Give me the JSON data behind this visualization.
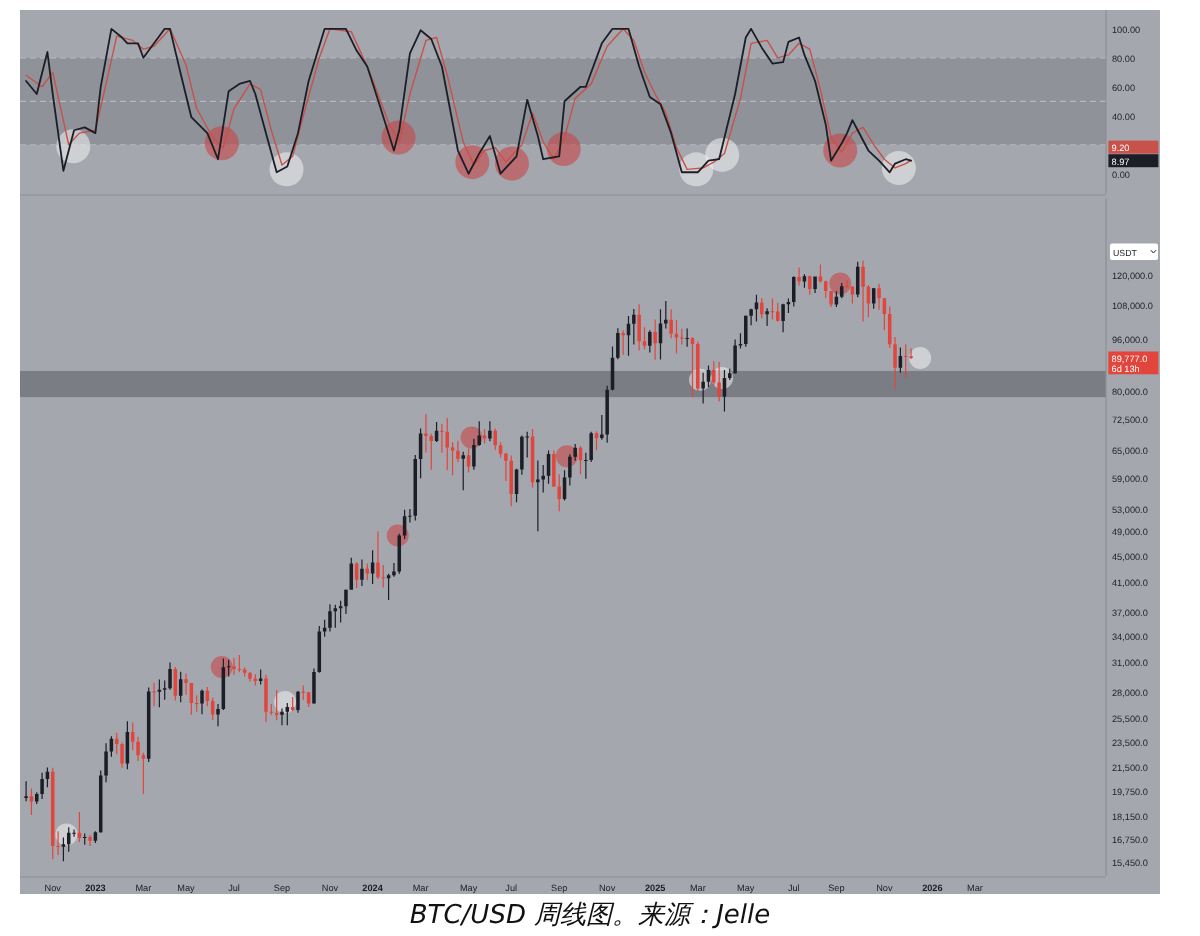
{
  "chart_data": [
    {
      "type": "line",
      "xlim": [
        "2022-09-25",
        "2026-08-21"
      ],
      "ylim": [
        -14,
        113
      ],
      "tick_labels": "y",
      "yticks": [
        {
          "value": 100,
          "label": "100.00"
        },
        {
          "value": 80,
          "label": "80.00"
        },
        {
          "value": 60,
          "label": "60.00"
        },
        {
          "value": 40,
          "label": "40.00"
        },
        {
          "value": 0,
          "label": "0.00"
        }
      ],
      "bands": [
        {
          "axis": "y",
          "from": 20,
          "to": 80,
          "color": "#8f9299"
        }
      ],
      "ref_lines": [
        {
          "axis": "y",
          "value": 80,
          "color": "#b4b7bd",
          "line_style": "dashed"
        },
        {
          "axis": "y",
          "value": 50,
          "color": "#b4b7bd",
          "line_style": "dashed"
        },
        {
          "axis": "y",
          "value": 20,
          "color": "#b4b7bd",
          "line_style": "dashed"
        }
      ],
      "annotations": [
        "9.20",
        "8.97"
      ],
      "series": [
        {
          "color": "#c8514a",
          "x": [
            "2022-10-03",
            "2022-10-24",
            "2022-11-07",
            "2022-11-28",
            "2022-12-12",
            "2023-01-02",
            "2023-01-16",
            "2023-01-30",
            "2023-02-20",
            "2023-03-06",
            "2023-03-20",
            "2023-04-10",
            "2023-05-01",
            "2023-05-15",
            "2023-06-05",
            "2023-06-19",
            "2023-07-03",
            "2023-07-24",
            "2023-08-07",
            "2023-08-21",
            "2023-09-04",
            "2023-09-18",
            "2023-10-02",
            "2023-10-23",
            "2023-11-06",
            "2023-12-04",
            "2023-12-18",
            "2024-01-01",
            "2024-01-22",
            "2024-02-05",
            "2024-02-19",
            "2024-03-11",
            "2024-03-25",
            "2024-04-08",
            "2024-04-29",
            "2024-05-13",
            "2024-05-27",
            "2024-06-10",
            "2024-06-24",
            "2024-07-15",
            "2024-07-29",
            "2024-08-12",
            "2024-08-26",
            "2024-09-09",
            "2024-09-23",
            "2024-10-14",
            "2024-11-04",
            "2024-11-25",
            "2024-12-09",
            "2024-12-23",
            "2025-01-06",
            "2025-01-20",
            "2025-02-03",
            "2025-02-17",
            "2025-03-10",
            "2025-03-24",
            "2025-04-07",
            "2025-04-28",
            "2025-05-12",
            "2025-06-02",
            "2025-06-16",
            "2025-06-30",
            "2025-07-14",
            "2025-07-28",
            "2025-08-11",
            "2025-08-25",
            "2025-09-08",
            "2025-09-22",
            "2025-10-06",
            "2025-10-20",
            "2025-11-03",
            "2025-11-17",
            "2025-12-01",
            "2025-12-08"
          ],
          "values": [
            68,
            60,
            70,
            20,
            28,
            30,
            62,
            95,
            92,
            86,
            88,
            100,
            75,
            45,
            25,
            18,
            45,
            62,
            58,
            30,
            6,
            12,
            40,
            80,
            100,
            98,
            82,
            65,
            35,
            22,
            55,
            92,
            94,
            68,
            22,
            6,
            16,
            18,
            8,
            20,
            42,
            22,
            10,
            25,
            52,
            62,
            88,
            100,
            92,
            70,
            55,
            42,
            18,
            3,
            4,
            8,
            14,
            52,
            90,
            92,
            80,
            82,
            90,
            86,
            58,
            25,
            15,
            28,
            32,
            20,
            10,
            4,
            7,
            9.2
          ]
        },
        {
          "color": "#1b1e26",
          "x": [
            "2022-10-03",
            "2022-10-17",
            "2022-10-31",
            "2022-11-07",
            "2022-11-21",
            "2022-12-05",
            "2022-12-19",
            "2023-01-02",
            "2023-01-09",
            "2023-01-23",
            "2023-02-06",
            "2023-02-13",
            "2023-02-27",
            "2023-03-06",
            "2023-03-20",
            "2023-04-03",
            "2023-04-10",
            "2023-04-24",
            "2023-05-08",
            "2023-05-29",
            "2023-06-12",
            "2023-06-26",
            "2023-07-10",
            "2023-07-24",
            "2023-07-31",
            "2023-08-14",
            "2023-08-28",
            "2023-09-11",
            "2023-09-25",
            "2023-10-09",
            "2023-10-30",
            "2023-11-13",
            "2023-11-27",
            "2023-12-11",
            "2023-12-25",
            "2024-01-08",
            "2024-01-29",
            "2024-02-05",
            "2024-02-19",
            "2024-03-04",
            "2024-03-18",
            "2024-04-01",
            "2024-04-22",
            "2024-05-06",
            "2024-05-20",
            "2024-06-03",
            "2024-06-17",
            "2024-07-08",
            "2024-07-22",
            "2024-08-05",
            "2024-08-12",
            "2024-09-02",
            "2024-09-09",
            "2024-09-30",
            "2024-10-07",
            "2024-10-28",
            "2024-11-11",
            "2024-12-02",
            "2024-12-16",
            "2024-12-30",
            "2025-01-13",
            "2025-01-27",
            "2025-02-10",
            "2025-03-03",
            "2025-03-17",
            "2025-03-31",
            "2025-04-21",
            "2025-05-05",
            "2025-05-12",
            "2025-05-26",
            "2025-06-09",
            "2025-06-23",
            "2025-06-30",
            "2025-07-14",
            "2025-07-21",
            "2025-08-04",
            "2025-08-18",
            "2025-08-25",
            "2025-09-08",
            "2025-09-15",
            "2025-09-22",
            "2025-09-29",
            "2025-10-13",
            "2025-10-27",
            "2025-11-10",
            "2025-11-17",
            "2025-12-01",
            "2025-12-08"
          ],
          "values": [
            64,
            55,
            84,
            55,
            2,
            30,
            32,
            28,
            60,
            100,
            94,
            90,
            90,
            80,
            90,
            100,
            100,
            69,
            39,
            28,
            10,
            57,
            62,
            64,
            55,
            28,
            1,
            5,
            28,
            64,
            100,
            100,
            100,
            85,
            74,
            51,
            16,
            30,
            83,
            99,
            93,
            74,
            16,
            0,
            14,
            26,
            0,
            12,
            51,
            26,
            10,
            12,
            50,
            60,
            60,
            90,
            100,
            100,
            74,
            53,
            48,
            28,
            1,
            1,
            9,
            10,
            55,
            94,
            100,
            87,
            76,
            77,
            91,
            94,
            82,
            64,
            34,
            9,
            21,
            28,
            37,
            30,
            16,
            9,
            1,
            7,
            10,
            8.97
          ]
        },
        {
          "type": "scatter",
          "marker": "circle",
          "x": [
            "2022-12-04",
            "2023-06-17",
            "2023-09-10",
            "2024-02-04",
            "2024-05-11",
            "2024-07-02",
            "2024-09-08",
            "2025-03-01",
            "2025-04-04",
            "2025-09-06",
            "2025-11-22"
          ],
          "values": [
            19,
            21,
            3,
            25,
            8,
            7,
            17,
            3,
            13,
            16,
            4
          ],
          "colors": [
            "#f2f2f2",
            "#cc3e3e",
            "#f2f2f2",
            "#cc3e3e",
            "#cc3e3e",
            "#cc3e3e",
            "#cc3e3e",
            "#f2f2f2",
            "#f2f2f2",
            "#cc3e3e",
            "#f2f2f2"
          ]
        }
      ]
    },
    {
      "type": "candlestick",
      "log": true,
      "ylabel": "USDT",
      "xlim": [
        "2022-09-25",
        "2026-08-21"
      ],
      "ylim": [
        14700,
        157000
      ],
      "xticks": [
        {
          "value": "2022-11-07",
          "label": "Nov"
        },
        {
          "value": "2023-01-02",
          "label": "2023"
        },
        {
          "value": "2023-03-06",
          "label": "Mar"
        },
        {
          "value": "2023-05-01",
          "label": "May"
        },
        {
          "value": "2023-07-03",
          "label": "Jul"
        },
        {
          "value": "2023-09-04",
          "label": "Sep"
        },
        {
          "value": "2023-11-06",
          "label": "Nov"
        },
        {
          "value": "2024-01-01",
          "label": "2024"
        },
        {
          "value": "2024-03-04",
          "label": "Mar"
        },
        {
          "value": "2024-05-06",
          "label": "May"
        },
        {
          "value": "2024-07-01",
          "label": "Jul"
        },
        {
          "value": "2024-09-02",
          "label": "Sep"
        },
        {
          "value": "2024-11-04",
          "label": "Nov"
        },
        {
          "value": "2025-01-06",
          "label": "2025"
        },
        {
          "value": "2025-03-03",
          "label": "Mar"
        },
        {
          "value": "2025-05-05",
          "label": "May"
        },
        {
          "value": "2025-07-07",
          "label": "Jul"
        },
        {
          "value": "2025-09-01",
          "label": "Sep"
        },
        {
          "value": "2025-11-03",
          "label": "Nov"
        },
        {
          "value": "2026-01-05",
          "label": "2026"
        },
        {
          "value": "2026-03-02",
          "label": "Mar"
        }
      ],
      "yticks": [
        {
          "value": 15450,
          "label": "15,450.0"
        },
        {
          "value": 16750,
          "label": "16,750.0"
        },
        {
          "value": 18150,
          "label": "18,150.0"
        },
        {
          "value": 19750,
          "label": "19,750.0"
        },
        {
          "value": 21500,
          "label": "21,500.0"
        },
        {
          "value": 23500,
          "label": "23,500.0"
        },
        {
          "value": 25500,
          "label": "25,500.0"
        },
        {
          "value": 28000,
          "label": "28,000.0"
        },
        {
          "value": 31000,
          "label": "31,000.0"
        },
        {
          "value": 34000,
          "label": "34,000.0"
        },
        {
          "value": 37000,
          "label": "37,000.0"
        },
        {
          "value": 41000,
          "label": "41,000.0"
        },
        {
          "value": 45000,
          "label": "45,000.0"
        },
        {
          "value": 49000,
          "label": "49,000.0"
        },
        {
          "value": 53000,
          "label": "53,000.0"
        },
        {
          "value": 59000,
          "label": "59,000.0"
        },
        {
          "value": 65000,
          "label": "65,000.0"
        },
        {
          "value": 72500,
          "label": "72,500.0"
        },
        {
          "value": 80000,
          "label": "80,000.0"
        },
        {
          "value": 96000,
          "label": "96,000.0"
        },
        {
          "value": 108000,
          "label": "108,000.0"
        },
        {
          "value": 120000,
          "label": "120,000.0"
        }
      ],
      "bands": [
        {
          "axis": "y",
          "from": 78300,
          "to": 85800,
          "color": "#7a7d84"
        }
      ],
      "annotations": [
        "89,777.0",
        "6d 13h",
        "BTC/USD 周线图。来源：Jelle"
      ],
      "series": [
        {
          "type": "scatter",
          "marker": "circle",
          "x": [
            "2022-11-25",
            "2023-06-17",
            "2023-09-08",
            "2024-02-03",
            "2024-05-10",
            "2024-09-12",
            "2025-03-06",
            "2025-04-04",
            "2025-09-06",
            "2025-12-20"
          ],
          "values": [
            17000,
            30500,
            27000,
            48300,
            68000,
            63700,
            83200,
            83700,
            116500,
            89800
          ],
          "colors": [
            "#f2f2f2",
            "#cc3e3e",
            "#f2f2f2",
            "#cc3e3e",
            "#cc3e3e",
            "#cc3e3e",
            "#f2f2f2",
            "#f2f2f2",
            "#cc3e3e",
            "#f2f2f2"
          ]
        }
      ],
      "x": [
        "2022-10-03",
        "2022-10-10",
        "2022-10-17",
        "2022-10-24",
        "2022-10-31",
        "2022-11-07",
        "2022-11-14",
        "2022-11-21",
        "2022-11-28",
        "2022-12-05",
        "2022-12-12",
        "2022-12-19",
        "2022-12-26",
        "2023-01-02",
        "2023-01-09",
        "2023-01-16",
        "2023-01-23",
        "2023-01-30",
        "2023-02-06",
        "2023-02-13",
        "2023-02-20",
        "2023-02-27",
        "2023-03-06",
        "2023-03-13",
        "2023-03-20",
        "2023-03-27",
        "2023-04-03",
        "2023-04-10",
        "2023-04-17",
        "2023-04-24",
        "2023-05-01",
        "2023-05-08",
        "2023-05-15",
        "2023-05-22",
        "2023-05-29",
        "2023-06-05",
        "2023-06-12",
        "2023-06-19",
        "2023-06-26",
        "2023-07-03",
        "2023-07-10",
        "2023-07-17",
        "2023-07-24",
        "2023-07-31",
        "2023-08-07",
        "2023-08-14",
        "2023-08-21",
        "2023-08-28",
        "2023-09-04",
        "2023-09-11",
        "2023-09-18",
        "2023-09-25",
        "2023-10-02",
        "2023-10-09",
        "2023-10-16",
        "2023-10-23",
        "2023-10-30",
        "2023-11-06",
        "2023-11-13",
        "2023-11-20",
        "2023-11-27",
        "2023-12-04",
        "2023-12-11",
        "2023-12-18",
        "2023-12-25",
        "2024-01-01",
        "2024-01-08",
        "2024-01-15",
        "2024-01-22",
        "2024-01-29",
        "2024-02-05",
        "2024-02-12",
        "2024-02-19",
        "2024-02-26",
        "2024-03-04",
        "2024-03-11",
        "2024-03-18",
        "2024-03-25",
        "2024-04-01",
        "2024-04-08",
        "2024-04-15",
        "2024-04-22",
        "2024-04-29",
        "2024-05-06",
        "2024-05-13",
        "2024-05-20",
        "2024-05-27",
        "2024-06-03",
        "2024-06-10",
        "2024-06-17",
        "2024-06-24",
        "2024-07-01",
        "2024-07-08",
        "2024-07-15",
        "2024-07-22",
        "2024-07-29",
        "2024-08-05",
        "2024-08-12",
        "2024-08-19",
        "2024-08-26",
        "2024-09-02",
        "2024-09-09",
        "2024-09-16",
        "2024-09-23",
        "2024-09-30",
        "2024-10-07",
        "2024-10-14",
        "2024-10-21",
        "2024-10-28",
        "2024-11-04",
        "2024-11-11",
        "2024-11-18",
        "2024-11-25",
        "2024-12-02",
        "2024-12-09",
        "2024-12-16",
        "2024-12-23",
        "2024-12-30",
        "2025-01-06",
        "2025-01-13",
        "2025-01-20",
        "2025-01-27",
        "2025-02-03",
        "2025-02-10",
        "2025-02-17",
        "2025-02-24",
        "2025-03-03",
        "2025-03-10",
        "2025-03-17",
        "2025-03-24",
        "2025-03-31",
        "2025-04-07",
        "2025-04-14",
        "2025-04-21",
        "2025-04-28",
        "2025-05-05",
        "2025-05-12",
        "2025-05-19",
        "2025-05-26",
        "2025-06-02",
        "2025-06-09",
        "2025-06-16",
        "2025-06-23",
        "2025-06-30",
        "2025-07-07",
        "2025-07-14",
        "2025-07-21",
        "2025-07-28",
        "2025-08-04",
        "2025-08-11",
        "2025-08-18",
        "2025-08-25",
        "2025-09-01",
        "2025-09-08",
        "2025-09-15",
        "2025-09-22",
        "2025-09-29",
        "2025-10-06",
        "2025-10-13",
        "2025-10-20",
        "2025-10-27",
        "2025-11-03",
        "2025-11-10",
        "2025-11-17",
        "2025-11-24",
        "2025-12-01",
        "2025-12-08"
      ],
      "ohlc": [
        [
          19310,
          20475,
          19090,
          19420
        ],
        [
          19420,
          19950,
          18190,
          19070
        ],
        [
          19070,
          19700,
          18900,
          19570
        ],
        [
          19570,
          21085,
          19240,
          20630
        ],
        [
          20630,
          21480,
          20050,
          21150
        ],
        [
          21150,
          21450,
          15590,
          16330
        ],
        [
          16330,
          17190,
          15815,
          16280
        ],
        [
          16280,
          16815,
          15476,
          16430
        ],
        [
          16430,
          17424,
          16000,
          17090
        ],
        [
          17090,
          17300,
          16860,
          17100
        ],
        [
          17100,
          18390,
          16560,
          16780
        ],
        [
          16780,
          17060,
          16400,
          16840
        ],
        [
          16840,
          16970,
          16330,
          16620
        ],
        [
          16620,
          17180,
          16500,
          17130
        ],
        [
          17130,
          21250,
          17100,
          20880
        ],
        [
          20880,
          23370,
          20400,
          22700
        ],
        [
          22700,
          23950,
          22300,
          23740
        ],
        [
          23740,
          24250,
          22500,
          23320
        ],
        [
          23320,
          23440,
          21460,
          21780
        ],
        [
          21780,
          25250,
          21350,
          24300
        ],
        [
          24300,
          25120,
          22800,
          23500
        ],
        [
          23500,
          23900,
          21970,
          22420
        ],
        [
          22420,
          22600,
          19570,
          22140
        ],
        [
          22140,
          28400,
          21900,
          28000
        ],
        [
          28000,
          28900,
          26600,
          27980
        ],
        [
          27980,
          29200,
          26500,
          28170
        ],
        [
          28170,
          29100,
          27200,
          28330
        ],
        [
          28330,
          31000,
          28170,
          30300
        ],
        [
          30300,
          30500,
          27130,
          27590
        ],
        [
          27590,
          30000,
          26970,
          29230
        ],
        [
          29230,
          29820,
          27680,
          28850
        ],
        [
          28850,
          28880,
          25810,
          26910
        ],
        [
          26910,
          27650,
          26100,
          26850
        ],
        [
          26850,
          28200,
          25870,
          28070
        ],
        [
          28070,
          28450,
          26600,
          27100
        ],
        [
          27100,
          27400,
          25350,
          25850
        ],
        [
          25850,
          26800,
          24800,
          26340
        ],
        [
          26340,
          31430,
          26250,
          30470
        ],
        [
          30470,
          31280,
          29500,
          30590
        ],
        [
          30590,
          31500,
          29700,
          30290
        ],
        [
          30290,
          31800,
          29950,
          30230
        ],
        [
          30230,
          30440,
          29500,
          29900
        ],
        [
          29900,
          29950,
          29000,
          29280
        ],
        [
          29280,
          29750,
          28590,
          29050
        ],
        [
          29050,
          30250,
          28700,
          29300
        ],
        [
          29300,
          29680,
          25170,
          26100
        ],
        [
          26100,
          26800,
          25800,
          26000
        ],
        [
          26000,
          28140,
          25330,
          25830
        ],
        [
          25830,
          26400,
          24900,
          26100
        ],
        [
          26100,
          26900,
          24900,
          26530
        ],
        [
          26530,
          27480,
          26150,
          26250
        ],
        [
          26250,
          28050,
          26000,
          27970
        ],
        [
          27970,
          28600,
          27200,
          27920
        ],
        [
          27920,
          27980,
          26530,
          26860
        ],
        [
          26860,
          30350,
          26830,
          29990
        ],
        [
          29990,
          35200,
          29900,
          34530
        ],
        [
          34530,
          35980,
          33900,
          35000
        ],
        [
          35000,
          37980,
          34530,
          37060
        ],
        [
          37060,
          37900,
          35000,
          37450
        ],
        [
          37450,
          38450,
          35630,
          37720
        ],
        [
          37720,
          40000,
          36700,
          39970
        ],
        [
          39970,
          44700,
          39950,
          43790
        ],
        [
          43790,
          44000,
          40200,
          41370
        ],
        [
          41370,
          44400,
          40500,
          42990
        ],
        [
          42990,
          43800,
          41300,
          42280
        ],
        [
          42280,
          45880,
          40750,
          43950
        ],
        [
          43950,
          48970,
          41500,
          41730
        ],
        [
          41730,
          43580,
          40280,
          41580
        ],
        [
          41580,
          42250,
          38550,
          42030
        ],
        [
          42030,
          43880,
          41800,
          42580
        ],
        [
          42580,
          48590,
          42260,
          48300
        ],
        [
          48300,
          52820,
          47710,
          51660
        ],
        [
          51660,
          52990,
          50520,
          51730
        ],
        [
          51730,
          64000,
          50900,
          63110
        ],
        [
          63110,
          70170,
          59000,
          68950
        ],
        [
          68950,
          73780,
          64530,
          68390
        ],
        [
          68390,
          68920,
          60770,
          67210
        ],
        [
          67210,
          71770,
          66930,
          69650
        ],
        [
          69650,
          71300,
          64500,
          69360
        ],
        [
          69360,
          72800,
          60660,
          65660
        ],
        [
          65660,
          66900,
          59600,
          64940
        ],
        [
          64940,
          67230,
          62400,
          63120
        ],
        [
          63120,
          64730,
          56550,
          63900
        ],
        [
          63900,
          65500,
          60190,
          61480
        ],
        [
          61480,
          67700,
          60750,
          66270
        ],
        [
          66270,
          71980,
          66100,
          68510
        ],
        [
          68510,
          70000,
          66600,
          67770
        ],
        [
          67770,
          71950,
          67150,
          69650
        ],
        [
          69650,
          70200,
          65080,
          66200
        ],
        [
          66200,
          66900,
          63400,
          64250
        ],
        [
          64250,
          64500,
          58400,
          62680
        ],
        [
          62680,
          63850,
          53500,
          55850
        ],
        [
          55850,
          61000,
          54260,
          60800
        ],
        [
          60800,
          68500,
          59700,
          68160
        ],
        [
          68160,
          69400,
          63400,
          68250
        ],
        [
          68250,
          70080,
          57120,
          58160
        ],
        [
          58160,
          62750,
          49000,
          58710
        ],
        [
          58710,
          61800,
          56100,
          59490
        ],
        [
          59490,
          65000,
          57870,
          64220
        ],
        [
          64220,
          64970,
          57200,
          57300
        ],
        [
          57300,
          59800,
          52550,
          54840
        ],
        [
          54840,
          60650,
          54580,
          59130
        ],
        [
          59130,
          64130,
          57500,
          63580
        ],
        [
          63580,
          66500,
          62700,
          65600
        ],
        [
          65600,
          66000,
          59830,
          62820
        ],
        [
          62820,
          64480,
          58900,
          62850
        ],
        [
          62850,
          69400,
          62450,
          69000
        ],
        [
          69000,
          69500,
          65050,
          67900
        ],
        [
          67900,
          73600,
          67480,
          68750
        ],
        [
          68750,
          81500,
          66800,
          80370
        ],
        [
          80370,
          93480,
          80200,
          89850
        ],
        [
          89850,
          99600,
          89400,
          97950
        ],
        [
          97950,
          98900,
          90800,
          97200
        ],
        [
          97200,
          104000,
          90500,
          101150
        ],
        [
          101150,
          106500,
          94150,
          104460
        ],
        [
          104460,
          108350,
          92200,
          95200
        ],
        [
          95200,
          99970,
          92500,
          93700
        ],
        [
          93700,
          98900,
          91500,
          98300
        ],
        [
          98300,
          102700,
          89250,
          94500
        ],
        [
          94500,
          106400,
          89300,
          101300
        ],
        [
          101300,
          109600,
          99500,
          102600
        ],
        [
          102600,
          106450,
          96200,
          97700
        ],
        [
          97700,
          102500,
          91230,
          96460
        ],
        [
          96460,
          99470,
          94100,
          96100
        ],
        [
          96100,
          99500,
          93400,
          96260
        ],
        [
          96260,
          96500,
          78250,
          94270
        ],
        [
          94270,
          95000,
          80000,
          80700
        ],
        [
          80700,
          85300,
          76600,
          82600
        ],
        [
          82600,
          87450,
          81100,
          86080
        ],
        [
          86080,
          88750,
          81600,
          82390
        ],
        [
          82390,
          88500,
          77150,
          78400
        ],
        [
          78400,
          86100,
          74500,
          83700
        ],
        [
          83700,
          86450,
          83100,
          85100
        ],
        [
          85100,
          95750,
          85000,
          93750
        ],
        [
          93750,
          97900,
          92800,
          94300
        ],
        [
          94300,
          104150,
          93400,
          104100
        ],
        [
          104100,
          106600,
          100700,
          106450
        ],
        [
          106450,
          111980,
          102000,
          109000
        ],
        [
          109000,
          110700,
          103100,
          104600
        ],
        [
          104600,
          106800,
          100400,
          105700
        ],
        [
          105700,
          110500,
          102700,
          105600
        ],
        [
          105600,
          108900,
          102000,
          102200
        ],
        [
          102200,
          108500,
          98200,
          108300
        ],
        [
          108300,
          110500,
          105100,
          109200
        ],
        [
          109200,
          119500,
          107500,
          119100
        ],
        [
          119100,
          123200,
          115700,
          117300
        ],
        [
          117300,
          120250,
          114700,
          119400
        ],
        [
          119400,
          119800,
          112000,
          114200
        ],
        [
          114200,
          119350,
          112650,
          119300
        ],
        [
          119300,
          124450,
          116800,
          117400
        ],
        [
          117400,
          117600,
          110700,
          113500
        ],
        [
          113500,
          113600,
          107300,
          108250
        ],
        [
          108250,
          113400,
          107250,
          111150
        ],
        [
          111150,
          116700,
          110600,
          115300
        ],
        [
          115300,
          117900,
          114800,
          115200
        ],
        [
          115200,
          115400,
          108650,
          112100
        ],
        [
          112100,
          125700,
          111000,
          123500
        ],
        [
          123500,
          126200,
          102000,
          115100
        ],
        [
          115100,
          115900,
          103500,
          108600
        ],
        [
          108600,
          114600,
          106600,
          114500
        ],
        [
          114500,
          116400,
          106300,
          110600
        ],
        [
          110600,
          110700,
          98900,
          104700
        ],
        [
          104700,
          107500,
          93000,
          94200
        ],
        [
          94200,
          96600,
          80600,
          86800
        ],
        [
          86800,
          93100,
          85300,
          90400
        ],
        [
          90400,
          94200,
          83800,
          90300
        ],
        [
          90300,
          92800,
          89500,
          89777
        ]
      ],
      "colors": [
        "#1b1e26",
        "#e2453c",
        "#1b1e26",
        "#1b1e26",
        "#1b1e26",
        "#e2453c",
        "#e2453c",
        "#1b1e26",
        "#1b1e26",
        "#1b1e26",
        "#e2453c",
        "#1b1e26",
        "#e2453c",
        "#1b1e26",
        "#1b1e26",
        "#1b1e26",
        "#1b1e26",
        "#e2453c",
        "#e2453c",
        "#1b1e26",
        "#e2453c",
        "#e2453c",
        "#e2453c",
        "#1b1e26",
        "#e2453c",
        "#1b1e26",
        "#1b1e26",
        "#1b1e26",
        "#e2453c",
        "#1b1e26",
        "#e2453c",
        "#e2453c",
        "#e2453c",
        "#1b1e26",
        "#e2453c",
        "#e2453c",
        "#1b1e26",
        "#1b1e26",
        "#1b1e26",
        "#e2453c",
        "#e2453c",
        "#e2453c",
        "#e2453c",
        "#e2453c",
        "#1b1e26",
        "#e2453c",
        "#e2453c",
        "#e2453c",
        "#1b1e26",
        "#1b1e26",
        "#e2453c",
        "#1b1e26",
        "#e2453c",
        "#e2453c",
        "#1b1e26",
        "#1b1e26",
        "#1b1e26",
        "#1b1e26",
        "#1b1e26",
        "#1b1e26",
        "#1b1e26",
        "#1b1e26",
        "#e2453c",
        "#1b1e26",
        "#e2453c",
        "#1b1e26",
        "#e2453c",
        "#e2453c",
        "#1b1e26",
        "#1b1e26",
        "#1b1e26",
        "#1b1e26",
        "#1b1e26",
        "#1b1e26",
        "#1b1e26",
        "#e2453c",
        "#e2453c",
        "#1b1e26",
        "#e2453c",
        "#e2453c",
        "#e2453c",
        "#e2453c",
        "#1b1e26",
        "#e2453c",
        "#1b1e26",
        "#1b1e26",
        "#e2453c",
        "#1b1e26",
        "#e2453c",
        "#e2453c",
        "#e2453c",
        "#e2453c",
        "#1b1e26",
        "#1b1e26",
        "#1b1e26",
        "#e2453c",
        "#1b1e26",
        "#1b1e26",
        "#1b1e26",
        "#e2453c",
        "#e2453c",
        "#1b1e26",
        "#1b1e26",
        "#1b1e26",
        "#e2453c",
        "#1b1e26",
        "#1b1e26",
        "#e2453c",
        "#1b1e26",
        "#1b1e26",
        "#1b1e26",
        "#1b1e26",
        "#e2453c",
        "#1b1e26",
        "#1b1e26",
        "#e2453c",
        "#e2453c",
        "#1b1e26",
        "#e2453c",
        "#1b1e26",
        "#1b1e26",
        "#e2453c",
        "#e2453c",
        "#e2453c",
        "#1b1e26",
        "#e2453c",
        "#e2453c",
        "#1b1e26",
        "#1b1e26",
        "#e2453c",
        "#e2453c",
        "#1b1e26",
        "#1b1e26",
        "#1b1e26",
        "#1b1e26",
        "#1b1e26",
        "#1b1e26",
        "#1b1e26",
        "#e2453c",
        "#1b1e26",
        "#e2453c",
        "#e2453c",
        "#1b1e26",
        "#1b1e26",
        "#1b1e26",
        "#e2453c",
        "#1b1e26",
        "#e2453c",
        "#1b1e26",
        "#e2453c",
        "#e2453c",
        "#e2453c",
        "#1b1e26",
        "#1b1e26",
        "#e2453c",
        "#e2453c",
        "#1b1e26",
        "#e2453c",
        "#e2453c",
        "#1b1e26",
        "#e2453c",
        "#e2453c",
        "#e2453c",
        "#e2453c",
        "#1b1e26",
        "#e2453c",
        "#e2453c"
      ]
    }
  ]
}
